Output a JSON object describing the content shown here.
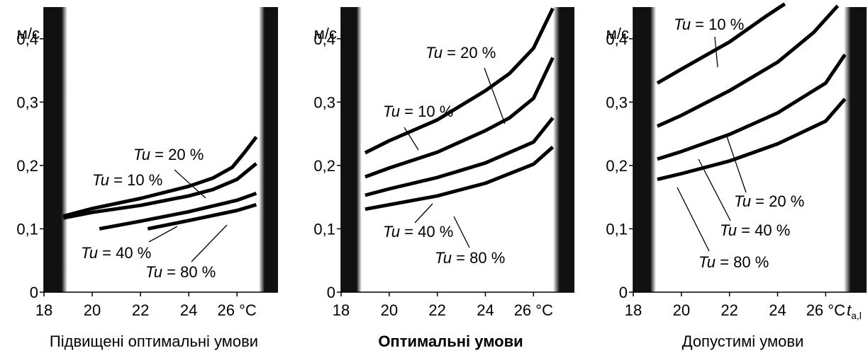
{
  "colors": {
    "line": "#000000",
    "band": "#111111",
    "background": "#ffffff"
  },
  "chart_data": [
    {
      "type": "line",
      "caption": "Підвищені оптимальні умови",
      "caption_bold": false,
      "ylabel": "м/с",
      "xunit": "°C",
      "xlim": [
        18,
        27.7
      ],
      "ylim": [
        0,
        0.45
      ],
      "xticks": [
        18,
        20,
        22,
        24,
        26
      ],
      "yticks": [
        0,
        0.1,
        0.2,
        0.3,
        0.4
      ],
      "ytick_labels": [
        "0",
        "0,1",
        "0,2",
        "0,3",
        "0,4"
      ],
      "series": [
        {
          "name": "Tu = 10 %",
          "x": [
            18.8,
            20,
            22,
            24,
            25,
            26,
            26.8
          ],
          "y": [
            0.117,
            0.126,
            0.137,
            0.152,
            0.162,
            0.178,
            0.203
          ]
        },
        {
          "name": "Tu = 20 %",
          "x": [
            18.8,
            20,
            22,
            24,
            25,
            25.8,
            26.3,
            26.8
          ],
          "y": [
            0.12,
            0.132,
            0.148,
            0.167,
            0.18,
            0.197,
            0.22,
            0.245
          ]
        },
        {
          "name": "Tu = 40 %",
          "x": [
            20.3,
            22,
            24,
            26,
            26.8
          ],
          "y": [
            0.1,
            0.112,
            0.127,
            0.145,
            0.156
          ]
        },
        {
          "name": "Tu = 80 %",
          "x": [
            22.3,
            24,
            26,
            26.8
          ],
          "y": [
            0.1,
            0.113,
            0.129,
            0.138
          ]
        }
      ],
      "annotations": [
        {
          "prefix": "Tu",
          "rest": " = 20 %"
        },
        {
          "prefix": "Tu",
          "rest": " = 10 %"
        },
        {
          "prefix": "Tu",
          "rest": " = 40 %"
        },
        {
          "prefix": "Tu",
          "rest": " = 80 %"
        }
      ]
    },
    {
      "type": "line",
      "caption": "Оптимальні умови",
      "caption_bold": true,
      "ylabel": "м/с",
      "xunit": "°C",
      "xlim": [
        18,
        27.7
      ],
      "ylim": [
        0,
        0.45
      ],
      "xticks": [
        18,
        20,
        22,
        24,
        26
      ],
      "yticks": [
        0,
        0.1,
        0.2,
        0.3,
        0.4
      ],
      "ytick_labels": [
        "0",
        "0,1",
        "0,2",
        "0,3",
        "0,4"
      ],
      "series": [
        {
          "name": "Tu = 10 %",
          "x": [
            19,
            20,
            22,
            24,
            25,
            26,
            26.8
          ],
          "y": [
            0.182,
            0.196,
            0.221,
            0.255,
            0.275,
            0.306,
            0.37
          ]
        },
        {
          "name": "Tu = 20 %",
          "x": [
            19,
            20,
            22,
            24,
            25,
            26,
            26.8
          ],
          "y": [
            0.22,
            0.239,
            0.272,
            0.318,
            0.345,
            0.385,
            0.448
          ]
        },
        {
          "name": "Tu = 40 %",
          "x": [
            19,
            20,
            22,
            24,
            26,
            26.8
          ],
          "y": [
            0.153,
            0.163,
            0.181,
            0.204,
            0.237,
            0.275
          ]
        },
        {
          "name": "Tu = 80 %",
          "x": [
            19,
            20,
            22,
            24,
            26,
            26.8
          ],
          "y": [
            0.131,
            0.138,
            0.152,
            0.172,
            0.202,
            0.229
          ]
        }
      ],
      "annotations": [
        {
          "prefix": "Tu",
          "rest": " = 20 %"
        },
        {
          "prefix": "Tu",
          "rest": " = 10 %"
        },
        {
          "prefix": "Tu",
          "rest": " = 40 %"
        },
        {
          "prefix": "Tu",
          "rest": " = 80 %"
        }
      ]
    },
    {
      "type": "line",
      "caption": "Допустимі умови",
      "caption_bold": false,
      "ylabel": "м/с",
      "xunit": "°C",
      "xlabel_extra": "t",
      "xlabel_sub": "a,l",
      "xlim": [
        18,
        27.7
      ],
      "ylim": [
        0,
        0.45
      ],
      "xticks": [
        18,
        20,
        22,
        24,
        26
      ],
      "yticks": [
        0,
        0.1,
        0.2,
        0.3,
        0.4
      ],
      "ytick_labels": [
        "0",
        "0,1",
        "0,2",
        "0,3",
        "0,4"
      ],
      "series": [
        {
          "name": "Tu = 10 %",
          "x": [
            19,
            20,
            22,
            23.5,
            24.3
          ],
          "y": [
            0.33,
            0.352,
            0.395,
            0.435,
            0.455
          ]
        },
        {
          "name": "Tu = 20 %",
          "x": [
            19,
            20,
            22,
            24,
            25.5,
            26.5
          ],
          "y": [
            0.262,
            0.279,
            0.318,
            0.363,
            0.41,
            0.452
          ]
        },
        {
          "name": "Tu = 40 %",
          "x": [
            19,
            20,
            22,
            24,
            26,
            26.8
          ],
          "y": [
            0.21,
            0.222,
            0.249,
            0.283,
            0.33,
            0.375
          ]
        },
        {
          "name": "Tu = 80 %",
          "x": [
            19,
            20,
            22,
            24,
            26,
            26.8
          ],
          "y": [
            0.178,
            0.187,
            0.207,
            0.234,
            0.27,
            0.305
          ]
        }
      ],
      "annotations": [
        {
          "prefix": "Tu",
          "rest": " = 10 %"
        },
        {
          "prefix": "Tu",
          "rest": " = 20 %"
        },
        {
          "prefix": "Tu",
          "rest": " = 40 %"
        },
        {
          "prefix": "Tu",
          "rest": " = 80 %"
        }
      ]
    }
  ]
}
